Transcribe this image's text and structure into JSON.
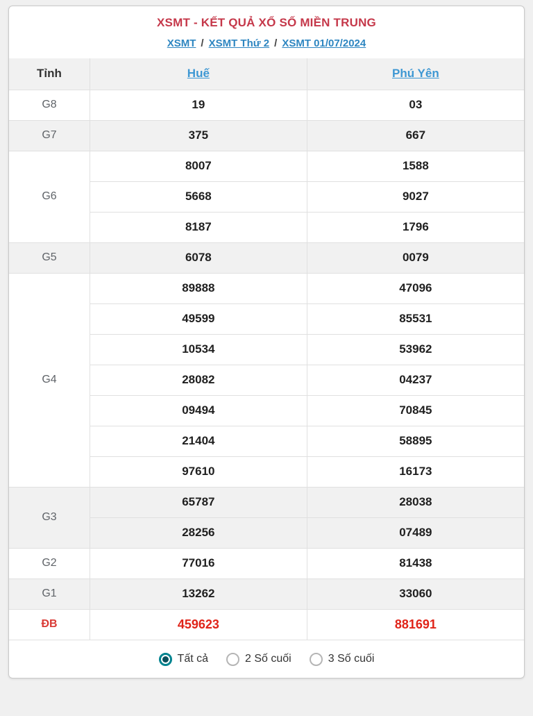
{
  "page": {
    "title": "XSMT - KẾT QUẢ XỔ SỐ MIỀN TRUNG",
    "breadcrumb": [
      "XSMT",
      "XSMT Thứ 2",
      "XSMT 01/07/2024"
    ],
    "separator": "/"
  },
  "table": {
    "corner_label": "Tỉnh",
    "columns": [
      "Huế",
      "Phú Yên"
    ],
    "rows": [
      {
        "prize": "G8",
        "shaded": false,
        "highlight": false,
        "values": [
          [
            "19"
          ],
          [
            "03"
          ]
        ]
      },
      {
        "prize": "G7",
        "shaded": true,
        "highlight": false,
        "values": [
          [
            "375"
          ],
          [
            "667"
          ]
        ]
      },
      {
        "prize": "G6",
        "shaded": false,
        "highlight": false,
        "values": [
          [
            "8007",
            "5668",
            "8187"
          ],
          [
            "1588",
            "9027",
            "1796"
          ]
        ]
      },
      {
        "prize": "G5",
        "shaded": true,
        "highlight": false,
        "values": [
          [
            "6078"
          ],
          [
            "0079"
          ]
        ]
      },
      {
        "prize": "G4",
        "shaded": false,
        "highlight": false,
        "values": [
          [
            "89888",
            "49599",
            "10534",
            "28082",
            "09494",
            "21404",
            "97610"
          ],
          [
            "47096",
            "85531",
            "53962",
            "04237",
            "70845",
            "58895",
            "16173"
          ]
        ]
      },
      {
        "prize": "G3",
        "shaded": true,
        "highlight": false,
        "values": [
          [
            "65787",
            "28256"
          ],
          [
            "28038",
            "07489"
          ]
        ]
      },
      {
        "prize": "G2",
        "shaded": false,
        "highlight": false,
        "values": [
          [
            "77016"
          ],
          [
            "81438"
          ]
        ]
      },
      {
        "prize": "G1",
        "shaded": true,
        "highlight": false,
        "values": [
          [
            "13262"
          ],
          [
            "33060"
          ]
        ]
      },
      {
        "prize": "ĐB",
        "shaded": false,
        "highlight": true,
        "values": [
          [
            "459623"
          ],
          [
            "881691"
          ]
        ]
      }
    ]
  },
  "footer": {
    "options": [
      {
        "label": "Tất cả",
        "selected": true
      },
      {
        "label": "2 Số cuối",
        "selected": false
      },
      {
        "label": "3 Số cuối",
        "selected": false
      }
    ]
  },
  "colors": {
    "title_red": "#c5384a",
    "link_blue": "#2e86c1",
    "province_link_blue": "#3d97d3",
    "highlight_red": "#e02419",
    "row_shade": "#f1f1f1",
    "radio_teal": "#00838f",
    "radio_dot": "#0b4f5c",
    "card_border": "#c9c9c9"
  }
}
